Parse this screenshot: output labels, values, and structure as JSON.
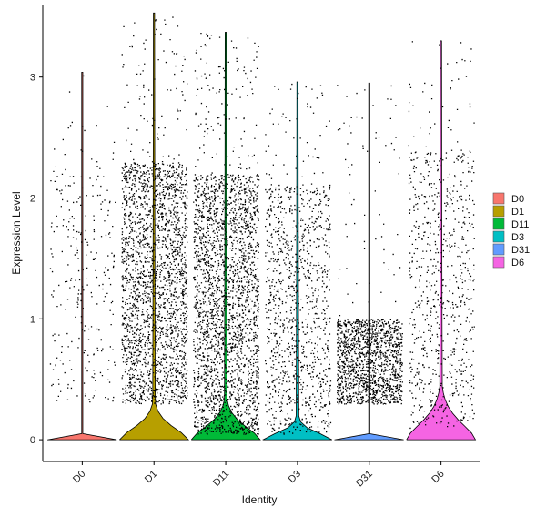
{
  "chart_data": {
    "type": "violin",
    "xlabel": "Identity",
    "ylabel": "Expression Level",
    "ylim": [
      -0.18,
      3.6
    ],
    "yticks": [
      0,
      1,
      2,
      3
    ],
    "categories": [
      "D0",
      "D1",
      "D11",
      "D3",
      "D31",
      "D6"
    ],
    "colors": {
      "D0": "#F8766D",
      "D1": "#B79F00",
      "D11": "#00BA38",
      "D3": "#00BFC4",
      "D31": "#619CFF",
      "D6": "#F564E3"
    },
    "legend_position": "right",
    "grid": false,
    "point_color": "#000000",
    "groups": [
      {
        "name": "D0",
        "max": 3.04,
        "points": 280,
        "dense_low": 0.3,
        "dense_high": 2.4,
        "violin_halfwidth": 0.48,
        "violin_peak_height": 0.02
      },
      {
        "name": "D1",
        "max": 3.53,
        "points": 2300,
        "dense_low": 0.3,
        "dense_high": 2.3,
        "violin_halfwidth": 0.48,
        "violin_peak_height": 0.24
      },
      {
        "name": "D11",
        "max": 3.37,
        "points": 2600,
        "dense_low": 0.05,
        "dense_high": 2.2,
        "violin_halfwidth": 0.48,
        "violin_peak_height": 0.26
      },
      {
        "name": "D3",
        "max": 2.96,
        "points": 1100,
        "dense_low": 0.05,
        "dense_high": 2.1,
        "violin_halfwidth": 0.48,
        "violin_peak_height": 0.14
      },
      {
        "name": "D31",
        "max": 2.95,
        "points": 1500,
        "dense_low": 0.3,
        "dense_high": 1.0,
        "violin_halfwidth": 0.48,
        "violin_peak_height": 0.02
      },
      {
        "name": "D6",
        "max": 3.3,
        "points": 750,
        "dense_low": 0.1,
        "dense_high": 2.4,
        "violin_halfwidth": 0.48,
        "violin_peak_height": 0.34
      }
    ]
  }
}
